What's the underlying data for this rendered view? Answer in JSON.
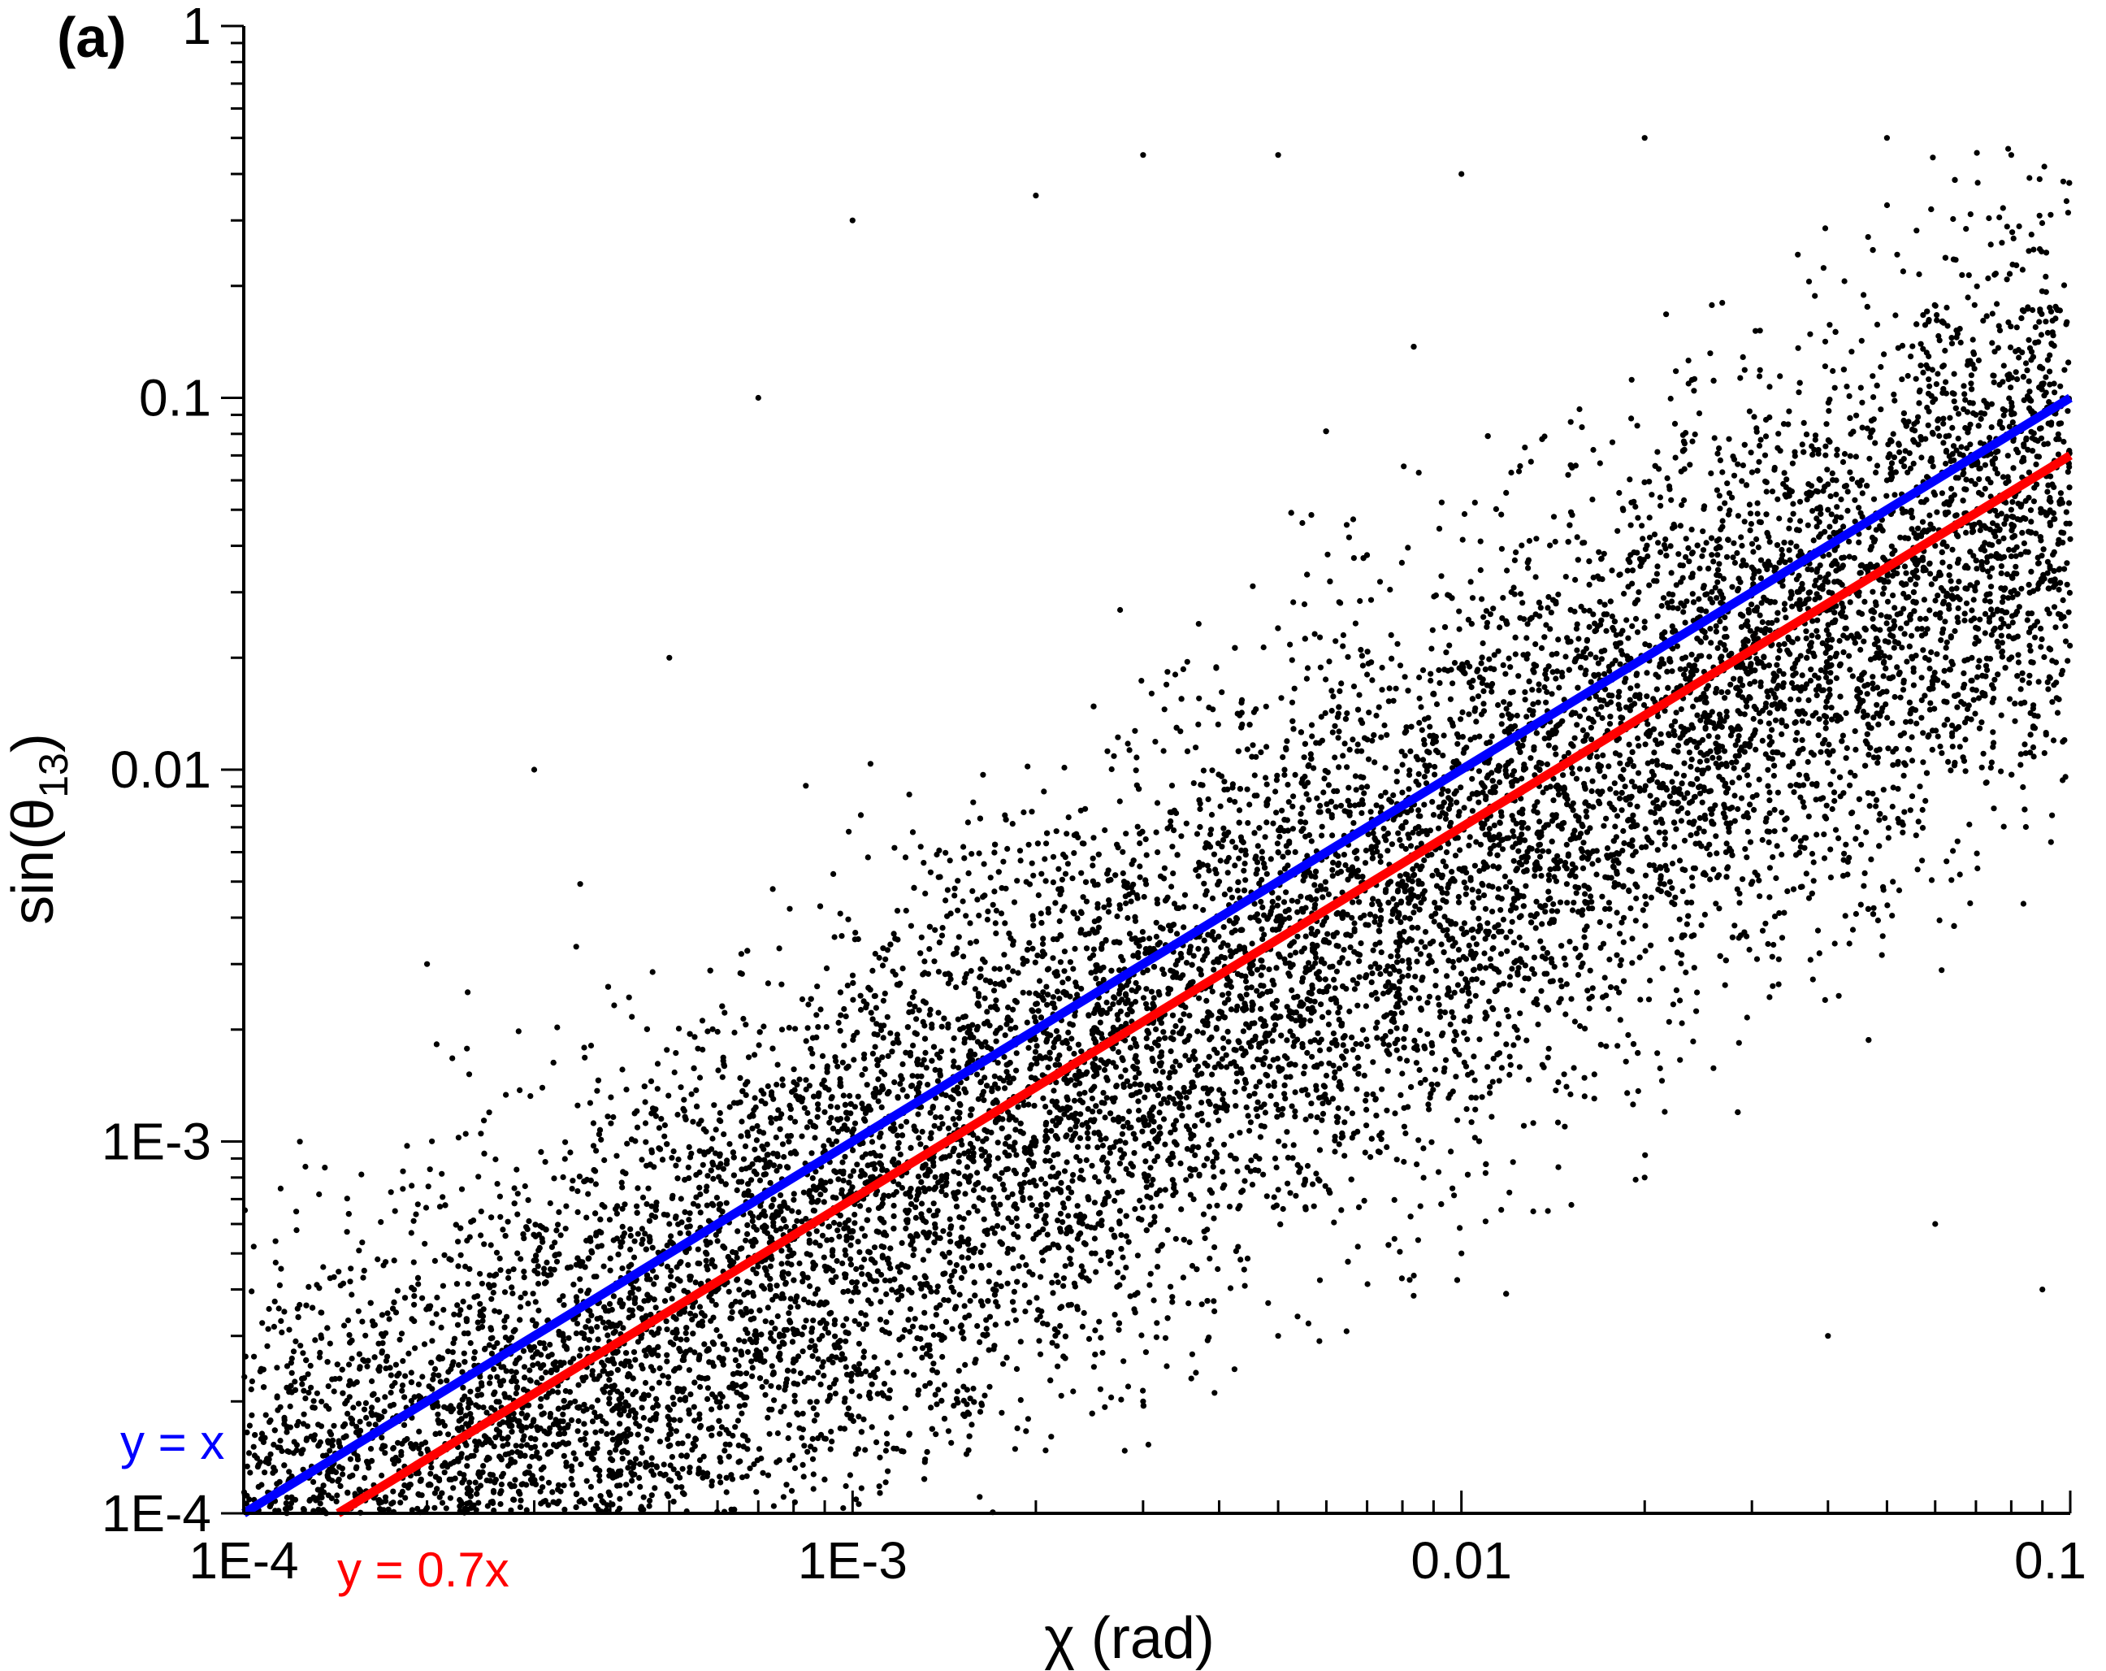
{
  "chart_data": {
    "type": "scatter",
    "panel_label": "(a)",
    "xlabel": "χ (rad)",
    "ylabel": "sin(θ13)",
    "ylabel_parts": {
      "prefix": "sin(θ",
      "subscript": "13",
      "suffix": ")"
    },
    "x_scale": "log",
    "y_scale": "log",
    "xlim": [
      0.0001,
      0.1
    ],
    "ylim": [
      0.0001,
      1
    ],
    "x_ticks": [
      {
        "value": 0.0001,
        "label": "1E-4"
      },
      {
        "value": 0.001,
        "label": "1E-3"
      },
      {
        "value": 0.01,
        "label": "0.01"
      },
      {
        "value": 0.1,
        "label": "0.1"
      }
    ],
    "y_ticks": [
      {
        "value": 0.0001,
        "label": "1E-4"
      },
      {
        "value": 0.001,
        "label": "1E-3"
      },
      {
        "value": 0.01,
        "label": "0.01"
      },
      {
        "value": 0.1,
        "label": "0.1"
      },
      {
        "value": 1,
        "label": "1"
      }
    ],
    "grid": false,
    "lines": [
      {
        "name": "y = x",
        "slope": 1.0,
        "color": "#0000ff"
      },
      {
        "name": "y = 0.7x",
        "slope": 0.7,
        "color": "#ff0000"
      }
    ],
    "scatter": {
      "color": "#000000",
      "description_of_distribution": "dense cloud centred near y ≈ 0.6x with log-normal spread; upper bound near y ≈ 0.5",
      "points": [
        [
          0.00012,
          0.00011
        ],
        [
          0.00015,
          0.00018
        ],
        [
          0.00018,
          0.00013
        ],
        [
          0.00022,
          0.00025
        ],
        [
          0.00025,
          0.00016
        ],
        [
          0.0003,
          0.00028
        ],
        [
          0.00035,
          0.0002
        ],
        [
          0.0004,
          0.00045
        ],
        [
          0.00045,
          0.00025
        ],
        [
          0.0005,
          0.0006
        ],
        [
          0.0006,
          0.0004
        ],
        [
          0.0007,
          0.0009
        ],
        [
          0.0008,
          0.0005
        ],
        [
          0.0009,
          0.0012
        ],
        [
          0.001,
          0.0007
        ],
        [
          0.0012,
          0.0015
        ],
        [
          0.0014,
          0.0009
        ],
        [
          0.0016,
          0.002
        ],
        [
          0.0018,
          0.0012
        ],
        [
          0.002,
          0.0025
        ],
        [
          0.0025,
          0.0016
        ],
        [
          0.003,
          0.0035
        ],
        [
          0.0035,
          0.0022
        ],
        [
          0.004,
          0.005
        ],
        [
          0.0045,
          0.003
        ],
        [
          0.005,
          0.006
        ],
        [
          0.006,
          0.004
        ],
        [
          0.007,
          0.009
        ],
        [
          0.008,
          0.005
        ],
        [
          0.009,
          0.012
        ],
        [
          0.01,
          0.007
        ],
        [
          0.012,
          0.015
        ],
        [
          0.014,
          0.009
        ],
        [
          0.016,
          0.02
        ],
        [
          0.018,
          0.012
        ],
        [
          0.02,
          0.025
        ],
        [
          0.025,
          0.016
        ],
        [
          0.03,
          0.035
        ],
        [
          0.035,
          0.022
        ],
        [
          0.04,
          0.05
        ],
        [
          0.045,
          0.03
        ],
        [
          0.05,
          0.06
        ],
        [
          0.06,
          0.04
        ],
        [
          0.07,
          0.09
        ],
        [
          0.08,
          0.05
        ],
        [
          0.09,
          0.12
        ],
        [
          0.095,
          0.065
        ],
        [
          0.0002,
          0.003
        ],
        [
          0.0003,
          0.01
        ],
        [
          0.0005,
          0.02
        ],
        [
          0.0007,
          0.1
        ],
        [
          0.001,
          0.3
        ],
        [
          0.002,
          0.35
        ],
        [
          0.003,
          0.45
        ],
        [
          0.005,
          0.45
        ],
        [
          0.01,
          0.4
        ],
        [
          0.02,
          0.5
        ],
        [
          0.05,
          0.5
        ],
        [
          0.08,
          0.45
        ],
        [
          0.003,
          0.0002
        ],
        [
          0.005,
          0.0003
        ],
        [
          0.01,
          0.0005
        ],
        [
          0.02,
          0.0008
        ],
        [
          0.04,
          0.0003
        ],
        [
          0.06,
          0.0006
        ],
        [
          0.09,
          0.0004
        ]
      ]
    }
  }
}
